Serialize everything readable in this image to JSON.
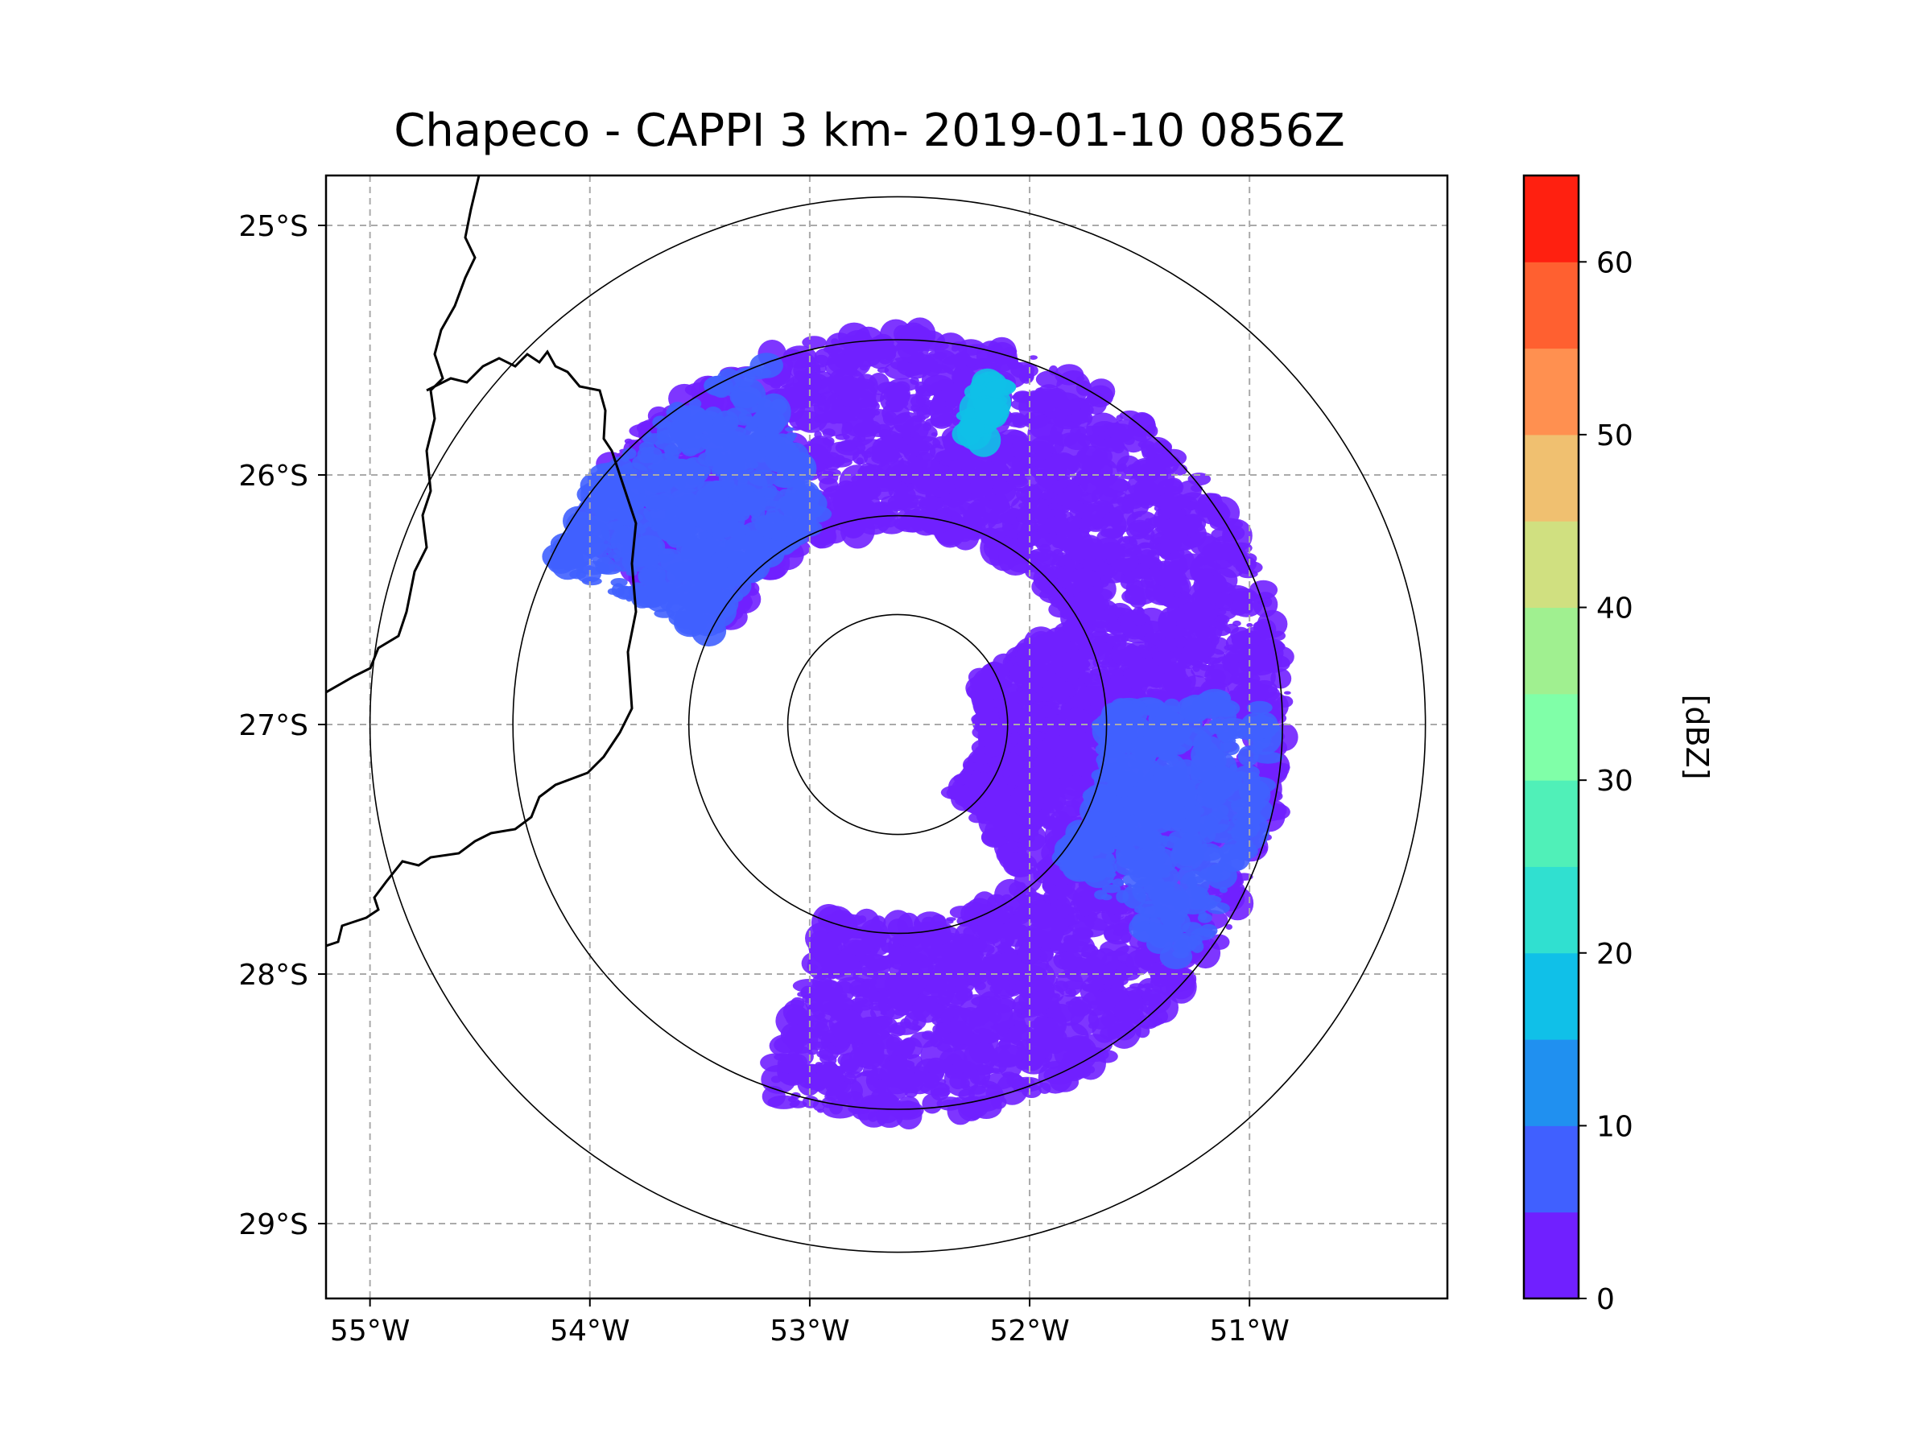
{
  "chart_data": {
    "type": "heatmap",
    "title": "Chapeco - CAPPI 3 km- 2019-01-10 0856Z",
    "radar_center": {
      "lon": -52.6,
      "lat": -27.0
    },
    "range_rings_deg": [
      0.5,
      0.95,
      1.75,
      2.4
    ],
    "data_coverage_deg": 1.8,
    "xlim_lon": [
      -55.2,
      -50.1
    ],
    "ylim_lat": [
      -29.3,
      -24.8
    ],
    "lon_ticks": [
      -55,
      -54,
      -53,
      -52,
      -51
    ],
    "lon_tick_labels": [
      "55°W",
      "54°W",
      "53°W",
      "52°W",
      "51°W"
    ],
    "lat_ticks": [
      -25,
      -26,
      -27,
      -28,
      -29
    ],
    "lat_tick_labels": [
      "25°S",
      "26°S",
      "27°S",
      "28°S",
      "29°S"
    ],
    "gridlines": true,
    "colorbar": {
      "label": "[dBZ]",
      "min": 0,
      "max": 65,
      "step": 5,
      "ticks": [
        0,
        10,
        20,
        30,
        40,
        50,
        60
      ],
      "tick_labels": [
        "0",
        "10",
        "20",
        "30",
        "40",
        "50",
        "60"
      ],
      "colors": [
        "#7020ff",
        "#4060ff",
        "#2090f0",
        "#10c0e8",
        "#30e0d0",
        "#50f0b8",
        "#80ffa8",
        "#a0f090",
        "#d0e080",
        "#f0c070",
        "#ff9050",
        "#ff6030",
        "#ff2010"
      ]
    },
    "echo_regions": [
      {
        "name": "north sector",
        "az_from": 300,
        "az_to": 60,
        "r_min": 0.9,
        "r_max": 1.78,
        "dbz": 2
      },
      {
        "name": "north-west band",
        "az_from": 295,
        "az_to": 340,
        "r_min": 0.95,
        "r_max": 1.75,
        "dbz": 7
      },
      {
        "name": "east sector",
        "az_from": 60,
        "az_to": 140,
        "r_min": 0.4,
        "r_max": 1.78,
        "dbz": 3
      },
      {
        "name": "east core",
        "az_from": 85,
        "az_to": 130,
        "r_min": 0.95,
        "r_max": 1.7,
        "dbz": 8
      },
      {
        "name": "south sector",
        "az_from": 140,
        "az_to": 200,
        "r_min": 0.9,
        "r_max": 1.8,
        "dbz": 2
      },
      {
        "name": "streak",
        "az_from": 13,
        "az_to": 17,
        "r_min": 1.35,
        "r_max": 1.65,
        "dbz": 17
      }
    ],
    "boundaries": [
      "country border (west)",
      "state border (west)"
    ]
  }
}
